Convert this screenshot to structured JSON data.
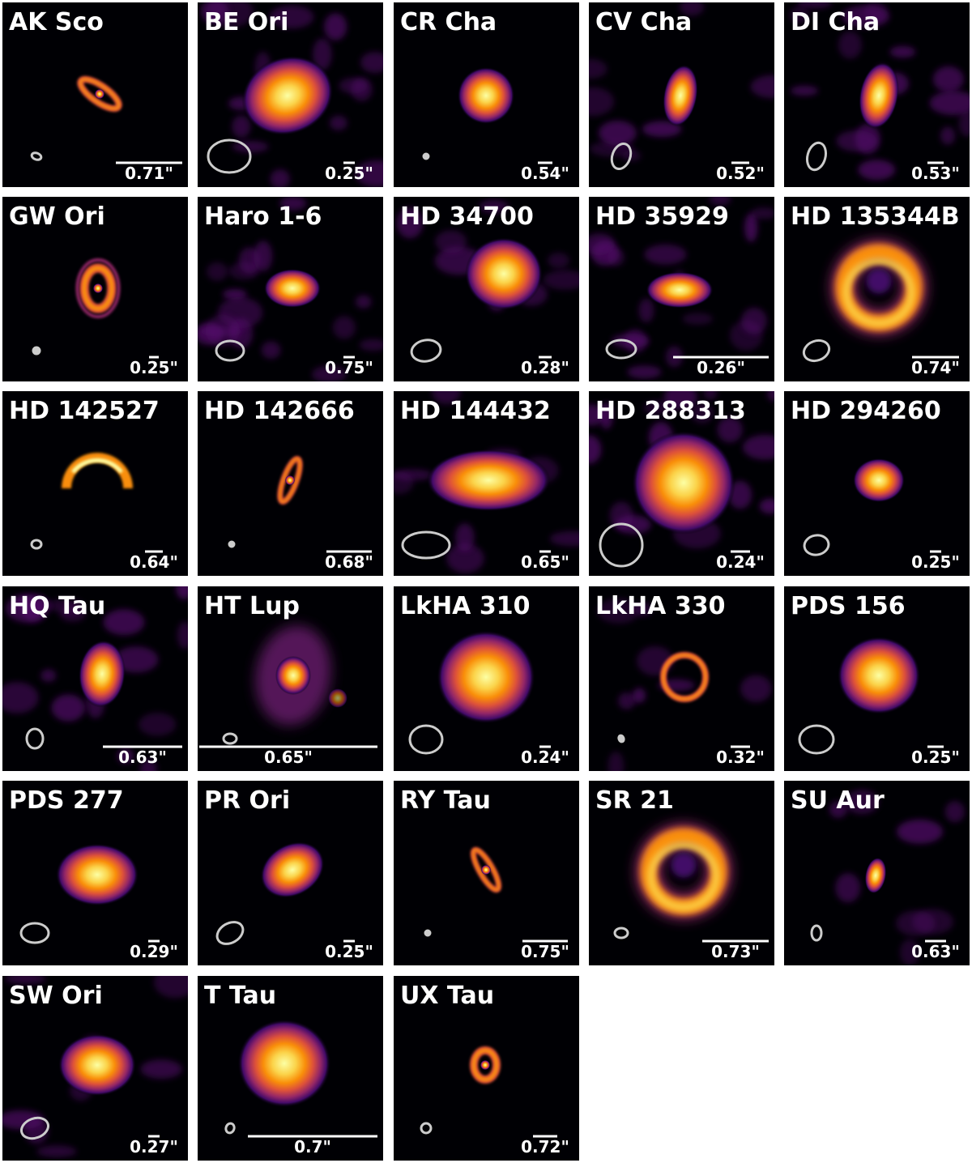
{
  "panels": [
    {
      "name": "AK Sco",
      "scale": "0.71\""
    },
    {
      "name": "BE Ori",
      "scale": "0.25\""
    },
    {
      "name": "CR Cha",
      "scale": "0.54\""
    },
    {
      "name": "CV Cha",
      "scale": "0.52\""
    },
    {
      "name": "DI Cha",
      "scale": "0.53\""
    },
    {
      "name": "GW Ori",
      "scale": "0.25\""
    },
    {
      "name": "Haro 1-6",
      "scale": "0.75\""
    },
    {
      "name": "HD 34700",
      "scale": "0.28\""
    },
    {
      "name": "HD 35929",
      "scale": "0.26\""
    },
    {
      "name": "HD 135344B",
      "scale": "0.74\""
    },
    {
      "name": "HD 142527",
      "scale": "0.64\""
    },
    {
      "name": "HD 142666",
      "scale": "0.68\""
    },
    {
      "name": "HD 144432",
      "scale": "0.65\""
    },
    {
      "name": "HD 288313",
      "scale": "0.24\""
    },
    {
      "name": "HD 294260",
      "scale": "0.25\""
    },
    {
      "name": "HQ Tau",
      "scale": "0.63\""
    },
    {
      "name": "HT Lup",
      "scale": "0.65\""
    },
    {
      "name": "LkHA 310",
      "scale": "0.24\""
    },
    {
      "name": "LkHA 330",
      "scale": "0.32\""
    },
    {
      "name": "PDS 156",
      "scale": "0.25\""
    },
    {
      "name": "PDS 277",
      "scale": "0.29\""
    },
    {
      "name": "PR Ori",
      "scale": "0.25\""
    },
    {
      "name": "RY Tau",
      "scale": "0.75\""
    },
    {
      "name": "SR 21",
      "scale": "0.73\""
    },
    {
      "name": "SU Aur",
      "scale": "0.63\""
    },
    {
      "name": "SW Ori",
      "scale": "0.27\""
    },
    {
      "name": "T Tau",
      "scale": "0.7\""
    },
    {
      "name": "UX Tau",
      "scale": "0.72\""
    }
  ]
}
